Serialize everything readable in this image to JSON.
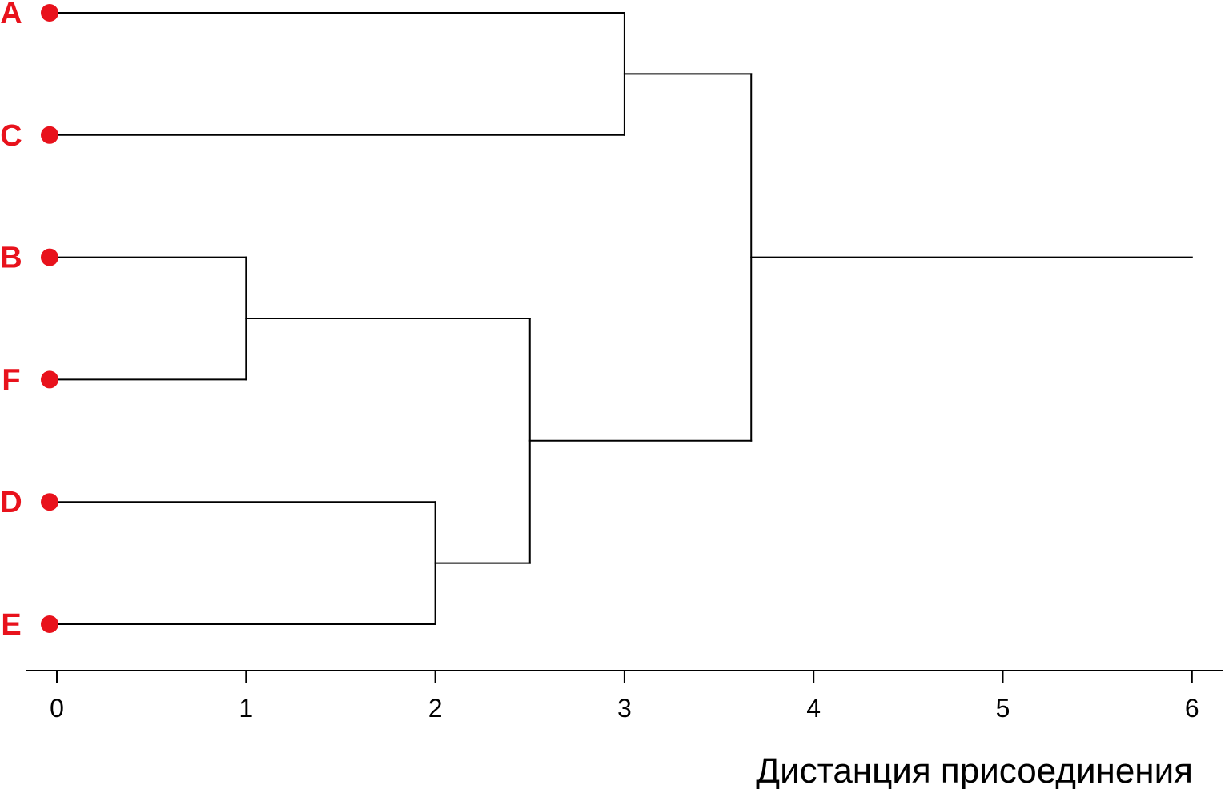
{
  "chart_data": {
    "type": "dendrogram",
    "orientation": "horizontal",
    "leaves": [
      "A",
      "C",
      "B",
      "F",
      "D",
      "E"
    ],
    "merges": [
      {
        "left": "B",
        "right": "F",
        "height": 1.0
      },
      {
        "left": "D",
        "right": "E",
        "height": 2.0
      },
      {
        "left": "B+F",
        "right": "D+E",
        "height": 2.5
      },
      {
        "left": "A",
        "right": "C",
        "height": 3.0
      },
      {
        "left": "A+C",
        "right": "B+F+D+E",
        "height": 3.67
      }
    ],
    "root_extends_to": 6,
    "x_ticks": [
      0,
      1,
      2,
      3,
      4,
      5,
      6
    ],
    "xlim": [
      0,
      6
    ],
    "xlabel": "Дистанция присоединения",
    "colors": {
      "leaf": "#e8121c",
      "line": "#000000"
    }
  }
}
